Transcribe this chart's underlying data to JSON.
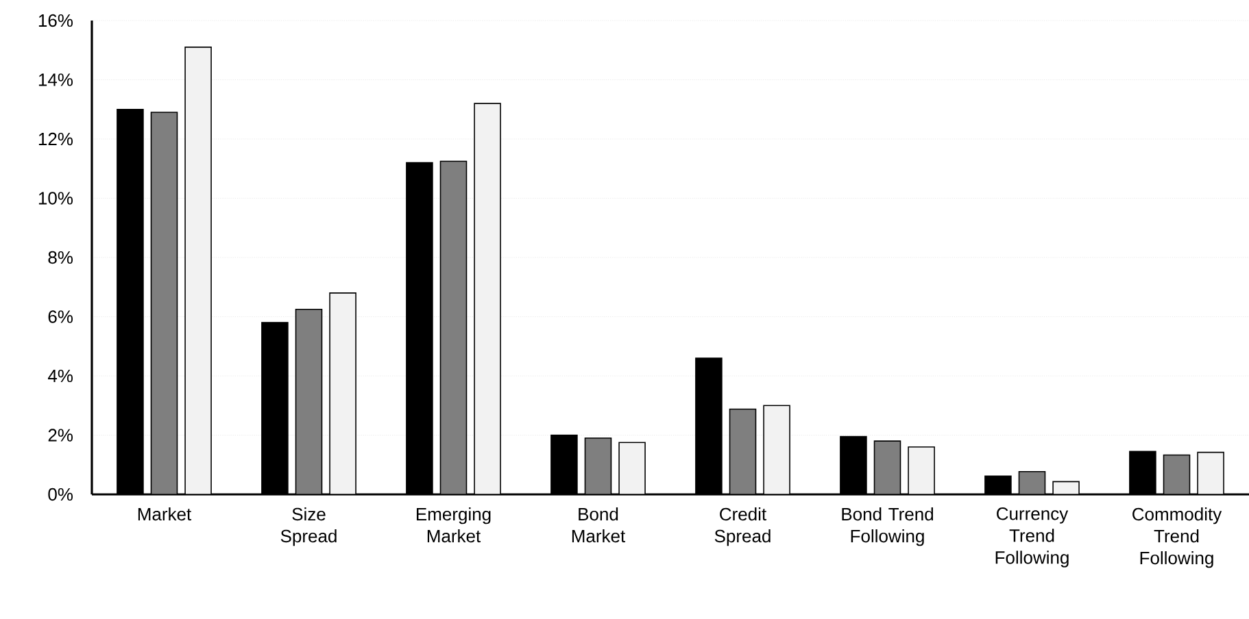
{
  "chart_data": {
    "type": "bar",
    "categories": [
      "Market",
      "Size Spread",
      "Emerging Market",
      "Bond Market",
      "Credit Spread",
      "Bond Trend Following",
      "Currency Trend Following",
      "Commodity Trend Following"
    ],
    "series": [
      {
        "color": "#000000",
        "values": [
          13.0,
          5.8,
          11.2,
          2.0,
          4.6,
          1.95,
          0.62,
          1.45
        ]
      },
      {
        "color": "#7f7f7f",
        "values": [
          12.9,
          6.25,
          11.25,
          1.9,
          2.88,
          1.8,
          0.77,
          1.33
        ]
      },
      {
        "color": "#f2f2f2",
        "values": [
          15.1,
          6.8,
          13.2,
          1.75,
          3.0,
          1.6,
          0.43,
          1.42
        ]
      }
    ],
    "ylim": [
      0,
      16
    ],
    "yticks": [
      {
        "value": 0,
        "label": "0%"
      },
      {
        "value": 2,
        "label": "2%"
      },
      {
        "value": 4,
        "label": "4%"
      },
      {
        "value": 6,
        "label": "6%"
      },
      {
        "value": 8,
        "label": "8%"
      },
      {
        "value": 10,
        "label": "10%"
      },
      {
        "value": 12,
        "label": "12%"
      },
      {
        "value": 14,
        "label": "14%"
      },
      {
        "value": 16,
        "label": "16%"
      }
    ],
    "grid": "y",
    "legend": false
  }
}
